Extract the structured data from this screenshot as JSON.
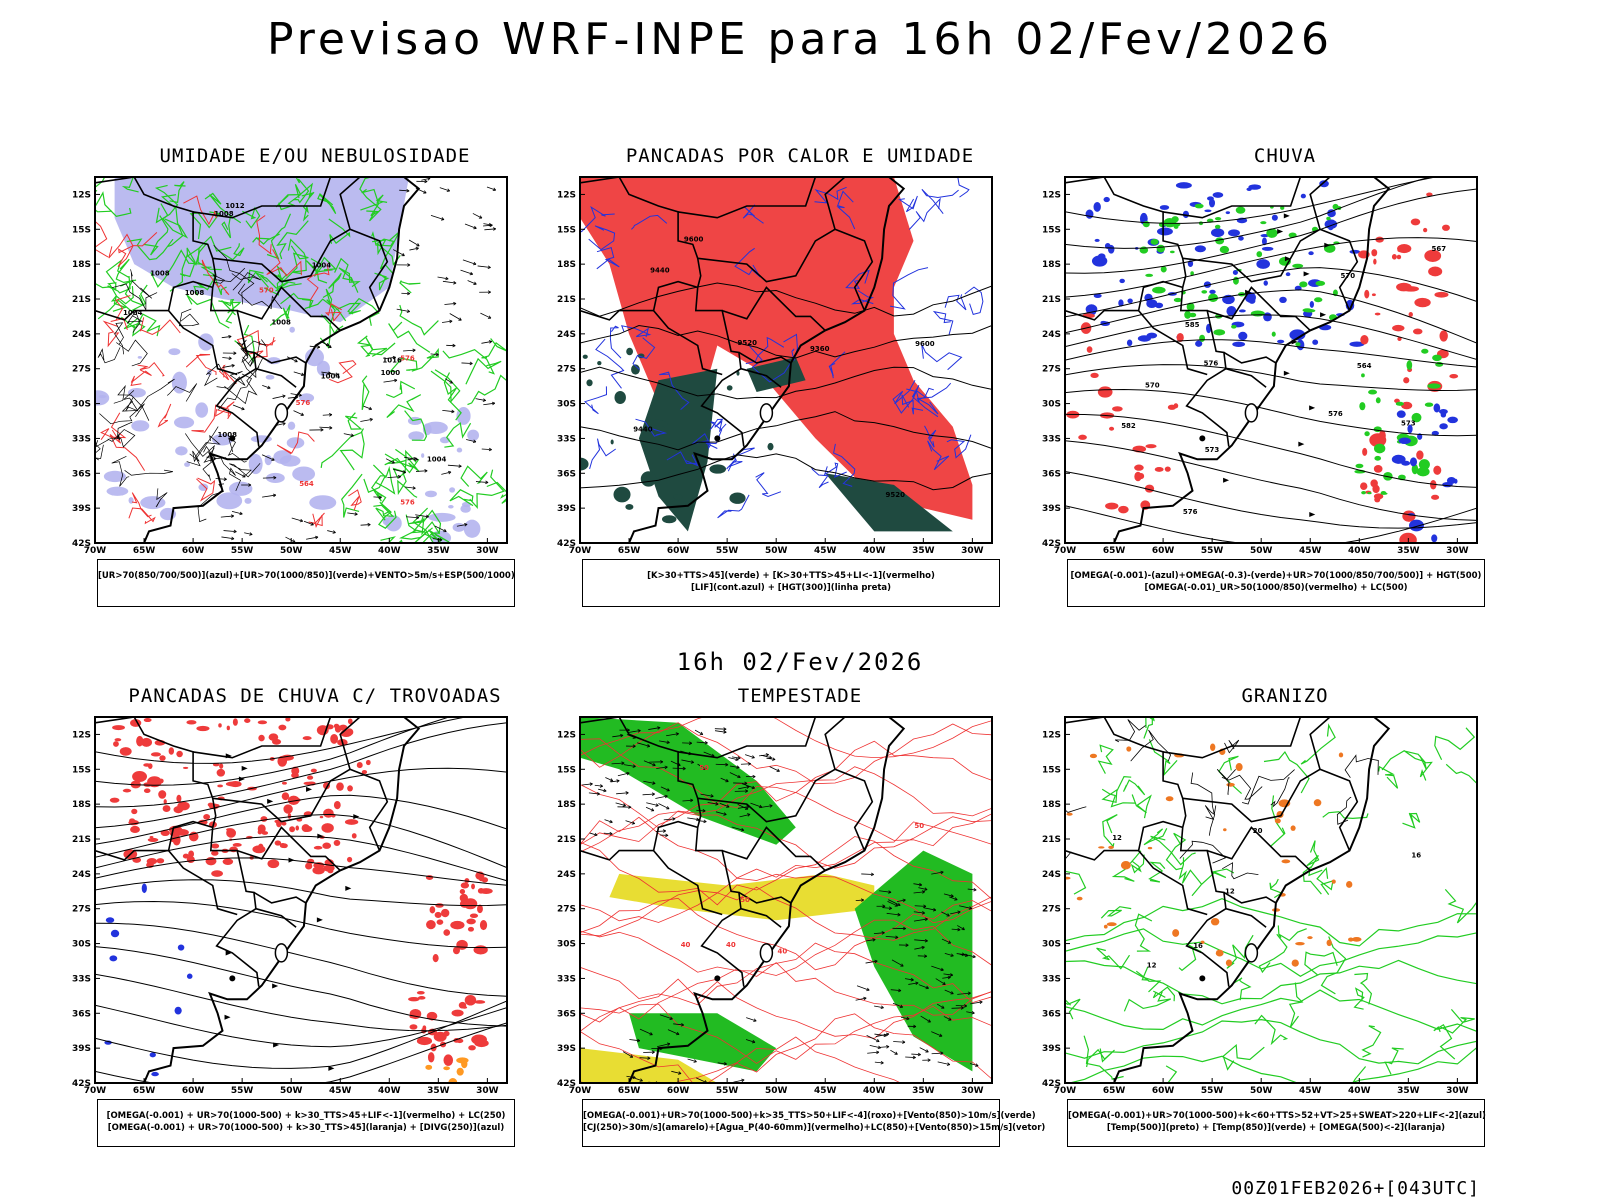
{
  "header": {
    "title": "Previsao WRF-INPE  para 16h 02/Fev/2026"
  },
  "middle_title": "16h 02/Fev/2026",
  "footer": "00Z01FEB2026+[043UTC]",
  "axes": {
    "lat_labels": [
      "12S",
      "15S",
      "18S",
      "21S",
      "24S",
      "27S",
      "30S",
      "33S",
      "36S",
      "39S",
      "42S"
    ],
    "lon_labels": [
      "70W",
      "65W",
      "60W",
      "55W",
      "50W",
      "45W",
      "40W",
      "35W",
      "30W"
    ]
  },
  "panels": [
    {
      "id": "umidade",
      "title": "UMIDADE E/OU NEBULOSIDADE",
      "legend": [
        "[UR>70(850/700/500)](azul)+[UR>70(1000/850)](verde)+VENTO>5m/s+ESP(500/1000)"
      ],
      "contour_labels": [
        "1008",
        "1008",
        "1008",
        "1008",
        "1008",
        "1004",
        "1004",
        "1004",
        "1004",
        "1000",
        "1012",
        "1016",
        "576",
        "576",
        "576",
        "564",
        "570"
      ],
      "colors": {
        "fill": "#b4b4ee",
        "line1": "#22cc22",
        "line2": "#ee3333"
      }
    },
    {
      "id": "calor",
      "title": "PANCADAS POR CALOR E UMIDADE",
      "legend": [
        "[K>30+TTS>45](verde)  +  [K>30+TTS>45+LI<-1](vermelho)",
        "[LIF](cont.azul)  +  [HGT(300)](linha preta)"
      ],
      "contour_labels": [
        "9600",
        "9600",
        "9520",
        "9520",
        "9440",
        "9440",
        "9360"
      ],
      "colors": {
        "fill": "#ee3b3b",
        "fill2": "#1f4a40",
        "line1": "#2233dd"
      }
    },
    {
      "id": "chuva",
      "title": "CHUVA",
      "legend": [
        "[OMEGA(-0.001)-(azul)+OMEGA(-0.3)-(verde)+UR>70(1000/850/700/500)]  +  HGT(500)",
        "[OMEGA(-0.01)_UR>50(1000/850)(vermelho)  +  LC(500)"
      ],
      "contour_labels": [
        "576",
        "576",
        "576",
        "573",
        "573",
        "570",
        "570",
        "567",
        "564",
        "582",
        "585"
      ],
      "colors": {
        "fill": "#ee3b3b",
        "fill2": "#2233dd",
        "fill3": "#22cc22"
      }
    },
    {
      "id": "trovoadas",
      "title": "PANCADAS DE CHUVA C/ TROVOADAS",
      "legend": [
        "[OMEGA(-0.001)  +  UR>70(1000-500)  +  k>30_TTS>45+LIF<-1](vermelho)  +  LC(250)",
        "[OMEGA(-0.001)  +  UR>70(1000-500)  +  k>30_TTS>45](laranja)  +  [DIVG(250)](azul)"
      ],
      "contour_labels": [],
      "colors": {
        "fill": "#ee3b3b",
        "fill2": "#2233dd",
        "fill3": "#ff9922"
      }
    },
    {
      "id": "tempestade",
      "title": "TEMPESTADE",
      "legend": [
        "[OMEGA(-0.001)+UR>70(1000-500)+k>35_TTS>50+LIF<-4](roxo)+[Vento(850)>10m/s](verde)",
        "[CJ(250)>30m/s](amarelo)+[Agua_P(40-60mm)](vermelho)+LC(850)+[Vento(850)>15m/s](vetor)"
      ],
      "contour_labels": [
        "40",
        "50",
        "40",
        "50",
        "40",
        "50"
      ],
      "colors": {
        "fill": "#22bb22",
        "fill2": "#e8dd33",
        "line1": "#ee3333"
      }
    },
    {
      "id": "granizo",
      "title": "GRANIZO",
      "legend": [
        "[OMEGA(-0.001)+UR>70(1000-500)+k<60+TTS>52+VT>25+SWEAT>220+LIF<-2](azul)",
        "[Temp(500)](preto)  +  [Temp(850)](verde)  +  [OMEGA(500)<-2](laranja)"
      ],
      "contour_labels": [
        "12",
        "12",
        "12",
        "16",
        "16",
        "20"
      ],
      "colors": {
        "line1": "#22cc22",
        "fill": "#ee7722"
      }
    }
  ]
}
